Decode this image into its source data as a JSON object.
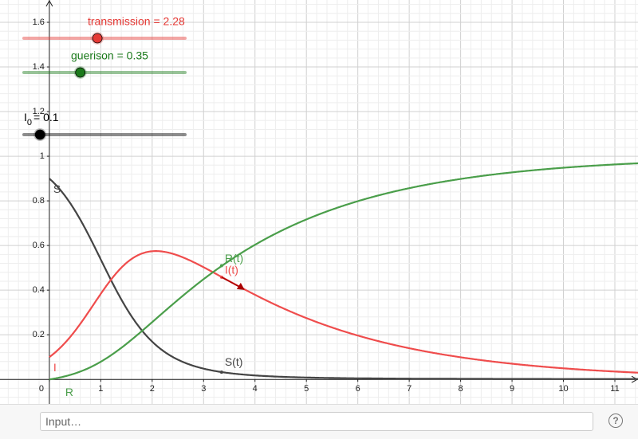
{
  "chart_data": {
    "type": "sir",
    "xlim": [
      -0.96,
      11.45
    ],
    "ylim": [
      -0.11,
      1.7
    ],
    "xticks": [
      0,
      1,
      2,
      3,
      4,
      5,
      6,
      7,
      8,
      9,
      10,
      11
    ],
    "yticks": [
      0.2,
      0.4,
      0.6,
      0.8,
      1,
      1.2,
      1.4,
      1.6
    ],
    "grid": true,
    "sliders": [
      {
        "name": "transmission",
        "value": 2.28,
        "value_label": "transmission = 2.28",
        "color": "#e53935"
      },
      {
        "name": "guerison",
        "value": 0.35,
        "value_label": "guerison = 0.35",
        "color": "#1b7a1b"
      },
      {
        "name": "I",
        "sub": "0",
        "value": 0.1,
        "value_label": "= 0.1",
        "color": "#000000"
      }
    ],
    "series": [
      {
        "name": "S",
        "point_label": "S(t)",
        "color": "#444444"
      },
      {
        "name": "I",
        "point_label": "I(t)",
        "color": "#ef4c4c"
      },
      {
        "name": "R",
        "point_label": "R(t)",
        "color": "#4a9e4a"
      }
    ]
  },
  "input_bar": {
    "placeholder": "Input…",
    "help": "?"
  }
}
